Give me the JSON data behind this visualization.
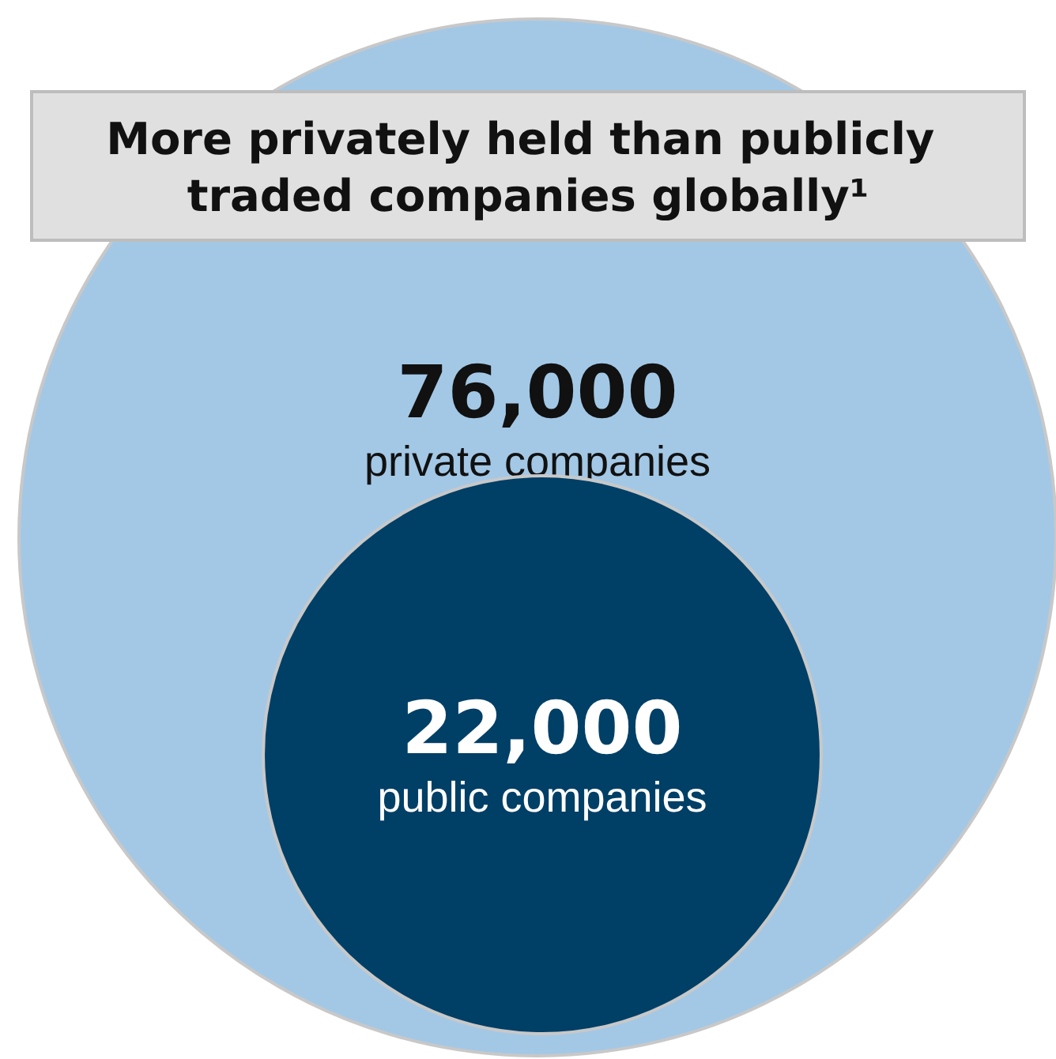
{
  "chart_data": {
    "type": "other",
    "title": "More privately held than publicly traded companies globally¹",
    "categories": [
      "private companies",
      "public companies"
    ],
    "values": [
      76000,
      22000
    ],
    "value_labels": [
      "76,000",
      "22,000"
    ],
    "colors": [
      "#a3c8e6",
      "#003f66"
    ]
  }
}
